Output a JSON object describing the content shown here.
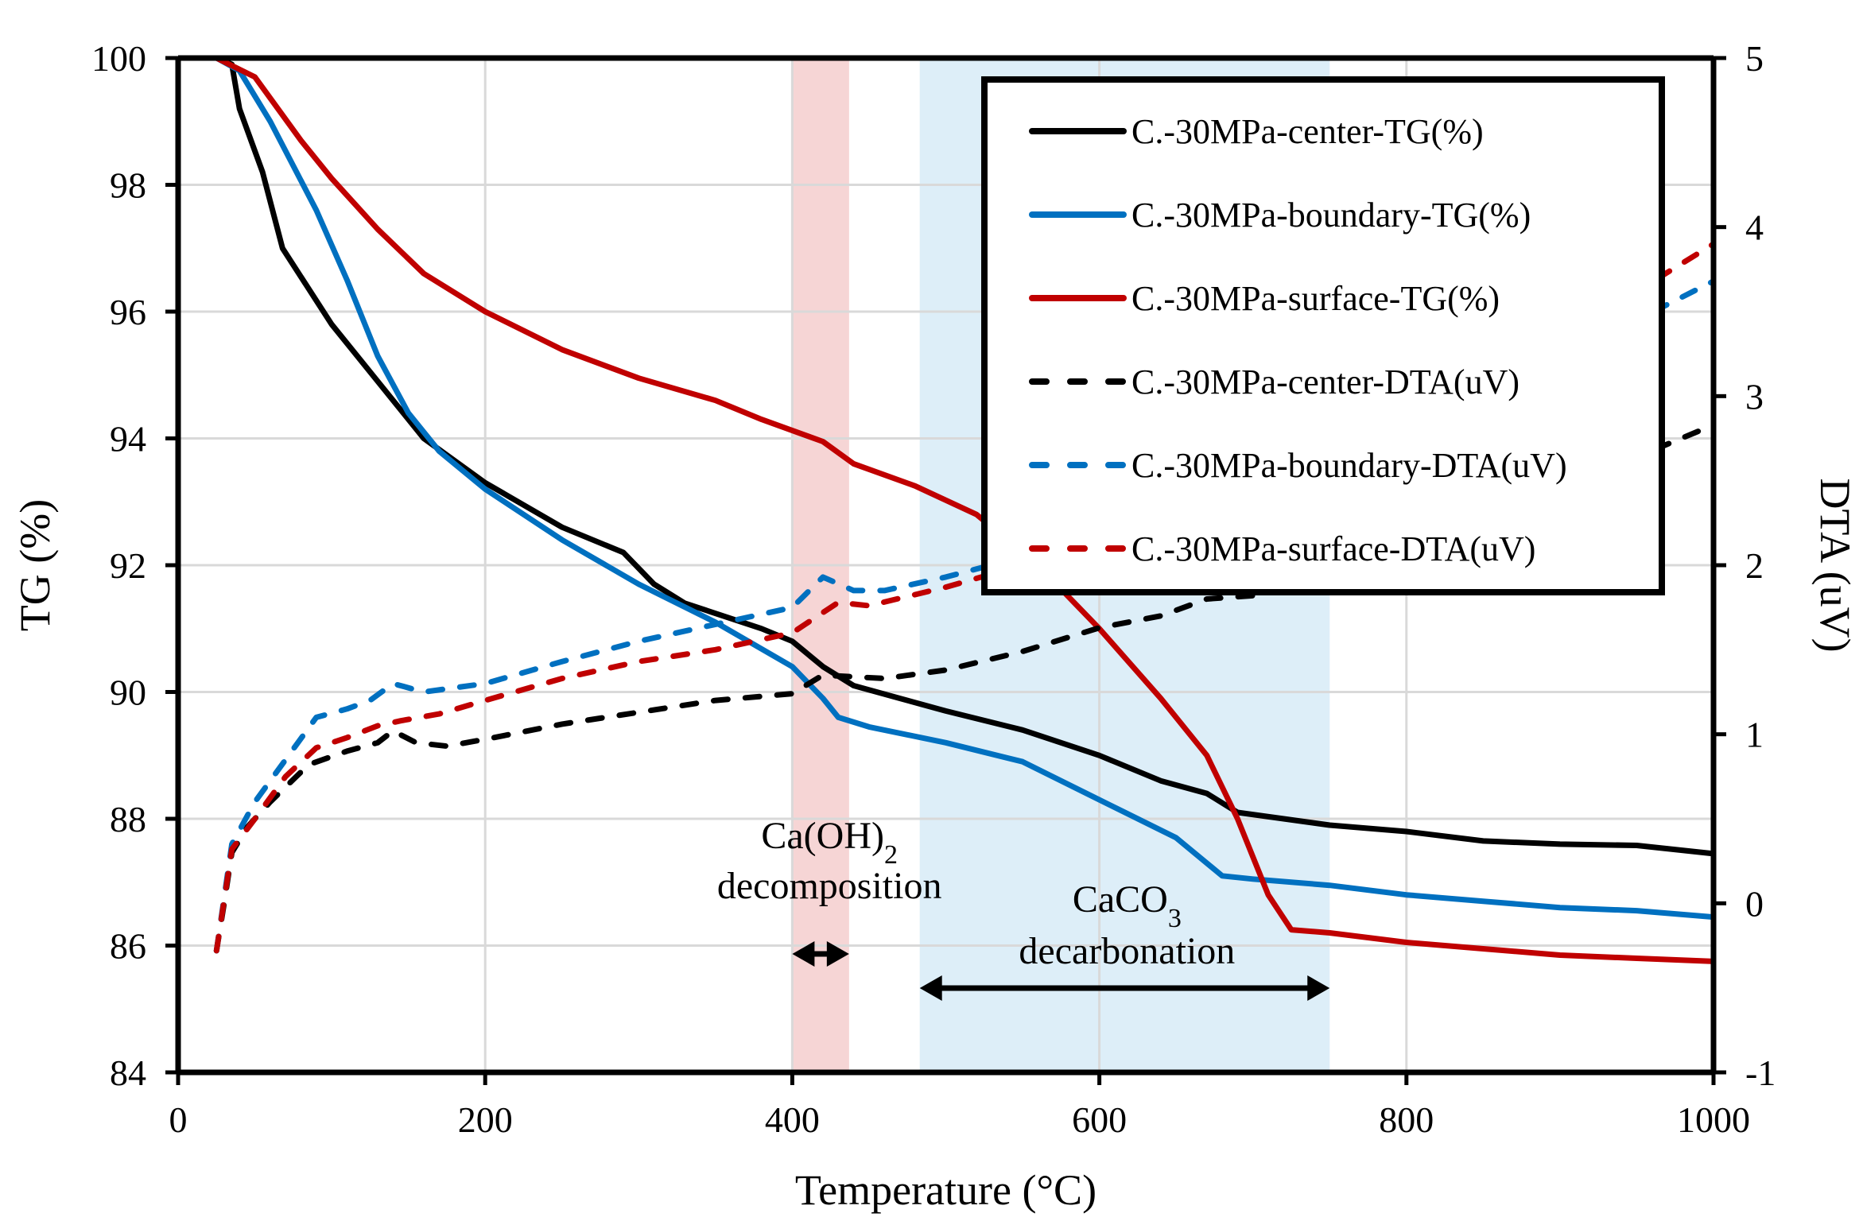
{
  "chart_data": {
    "type": "line",
    "title": "",
    "xlabel": "Temperature (°C)",
    "ylabel": "TG (%)",
    "y2label": "DTA (uV)",
    "xlim": [
      0,
      1000
    ],
    "ylim": [
      84,
      100
    ],
    "y2lim": [
      -1,
      5
    ],
    "xticks": [
      "0",
      "200",
      "400",
      "600",
      "800",
      "1000"
    ],
    "yticks": [
      "84",
      "86",
      "88",
      "90",
      "92",
      "94",
      "96",
      "98",
      "100"
    ],
    "y2ticks": [
      "-1",
      "0",
      "1",
      "2",
      "3",
      "4",
      "5"
    ],
    "grid": true,
    "legend_position": "top-right",
    "shaded_regions": [
      {
        "name": "CaOH2-decomposition",
        "x_range": [
          400,
          437
        ],
        "color": "#f6d5d5"
      },
      {
        "name": "CaCO3-decarbonation",
        "x_range": [
          483,
          750
        ],
        "color": "#ddeef8"
      }
    ],
    "annotations": [
      {
        "id": "caoh2",
        "line1": "Ca(OH)",
        "line1_sub": "2",
        "line2": "decomposition",
        "arrow_range": [
          400,
          437
        ]
      },
      {
        "id": "caco3",
        "line1": "CaCO",
        "line1_sub": "3",
        "line2": "decarbonation",
        "arrow_range": [
          483,
          750
        ]
      }
    ],
    "series": [
      {
        "name": "C.-30MPa-center-TG(%)",
        "axis": "left",
        "color": "#000000",
        "dash": false,
        "x": [
          25,
          35,
          40,
          55,
          68,
          100,
          130,
          160,
          200,
          250,
          290,
          310,
          330,
          380,
          400,
          420,
          440,
          470,
          500,
          550,
          600,
          640,
          670,
          690,
          750,
          800,
          850,
          900,
          950,
          1000
        ],
        "y": [
          100,
          99.9,
          99.2,
          98.2,
          97.0,
          95.8,
          94.9,
          94.0,
          93.3,
          92.6,
          92.2,
          91.7,
          91.4,
          91.0,
          90.8,
          90.4,
          90.1,
          89.9,
          89.7,
          89.4,
          89.0,
          88.6,
          88.4,
          88.1,
          87.9,
          87.8,
          87.65,
          87.6,
          87.58,
          87.45
        ]
      },
      {
        "name": "C.-30MPa-boundary-TG(%)",
        "axis": "left",
        "color": "#0070c0",
        "dash": false,
        "x": [
          25,
          40,
          60,
          90,
          110,
          130,
          150,
          170,
          200,
          250,
          300,
          350,
          400,
          420,
          430,
          450,
          500,
          550,
          600,
          650,
          680,
          700,
          750,
          800,
          850,
          900,
          950,
          1000
        ],
        "y": [
          100,
          99.8,
          99.0,
          97.6,
          96.5,
          95.3,
          94.4,
          93.8,
          93.2,
          92.4,
          91.7,
          91.1,
          90.4,
          89.9,
          89.6,
          89.45,
          89.2,
          88.9,
          88.3,
          87.7,
          87.1,
          87.05,
          86.95,
          86.8,
          86.7,
          86.6,
          86.55,
          86.45
        ]
      },
      {
        "name": "C.-30MPa-surface-TG(%)",
        "axis": "left",
        "color": "#c00000",
        "dash": false,
        "x": [
          25,
          50,
          80,
          100,
          130,
          160,
          200,
          250,
          300,
          350,
          380,
          420,
          440,
          480,
          520,
          560,
          600,
          640,
          670,
          690,
          710,
          725,
          750,
          800,
          850,
          900,
          950,
          1000
        ],
        "y": [
          100,
          99.7,
          98.7,
          98.1,
          97.3,
          96.6,
          96.0,
          95.4,
          94.95,
          94.6,
          94.3,
          93.95,
          93.6,
          93.25,
          92.8,
          92.0,
          91.0,
          89.9,
          89.0,
          88.0,
          86.8,
          86.25,
          86.2,
          86.05,
          85.95,
          85.85,
          85.8,
          85.75
        ]
      },
      {
        "name": "C.-30MPa-center-DTA(uV)",
        "axis": "right",
        "color": "#000000",
        "dash": true,
        "x": [
          25,
          30,
          35,
          45,
          60,
          85,
          110,
          130,
          140,
          155,
          175,
          200,
          250,
          300,
          350,
          400,
          420,
          440,
          460,
          500,
          550,
          600,
          640,
          670,
          700,
          750,
          800,
          850,
          900,
          950,
          1000
        ],
        "y": [
          -0.28,
          0.0,
          0.3,
          0.45,
          0.6,
          0.82,
          0.9,
          0.95,
          1.02,
          0.95,
          0.93,
          0.97,
          1.06,
          1.13,
          1.2,
          1.24,
          1.35,
          1.34,
          1.33,
          1.38,
          1.49,
          1.63,
          1.7,
          1.8,
          1.82,
          1.92,
          2.04,
          2.22,
          2.46,
          2.64,
          2.83
        ]
      },
      {
        "name": "C.-30MPa-boundary-DTA(uV)",
        "axis": "right",
        "color": "#0070c0",
        "dash": true,
        "x": [
          25,
          35,
          50,
          70,
          90,
          110,
          125,
          140,
          160,
          200,
          250,
          300,
          350,
          400,
          420,
          440,
          460,
          500,
          550,
          600,
          650,
          680,
          700,
          750,
          800,
          850,
          900,
          950,
          1000
        ],
        "y": [
          -0.28,
          0.35,
          0.6,
          0.85,
          1.1,
          1.15,
          1.2,
          1.3,
          1.25,
          1.3,
          1.43,
          1.55,
          1.65,
          1.75,
          1.93,
          1.85,
          1.85,
          1.93,
          2.05,
          2.18,
          2.35,
          2.42,
          2.45,
          2.6,
          2.78,
          3.05,
          3.25,
          3.45,
          3.68
        ]
      },
      {
        "name": "C.-30MPa-surface-DTA(uV)",
        "axis": "right",
        "color": "#c00000",
        "dash": true,
        "x": [
          25,
          35,
          50,
          70,
          90,
          110,
          130,
          145,
          170,
          200,
          250,
          300,
          350,
          400,
          430,
          450,
          500,
          550,
          600,
          650,
          690,
          710,
          725,
          750,
          800,
          850,
          900,
          950,
          1000
        ],
        "y": [
          -0.28,
          0.32,
          0.5,
          0.75,
          0.92,
          0.98,
          1.05,
          1.08,
          1.12,
          1.2,
          1.33,
          1.43,
          1.5,
          1.6,
          1.78,
          1.76,
          1.87,
          2.0,
          2.2,
          2.5,
          2.75,
          2.85,
          2.75,
          2.8,
          2.98,
          3.15,
          3.38,
          3.62,
          3.9
        ]
      }
    ]
  }
}
